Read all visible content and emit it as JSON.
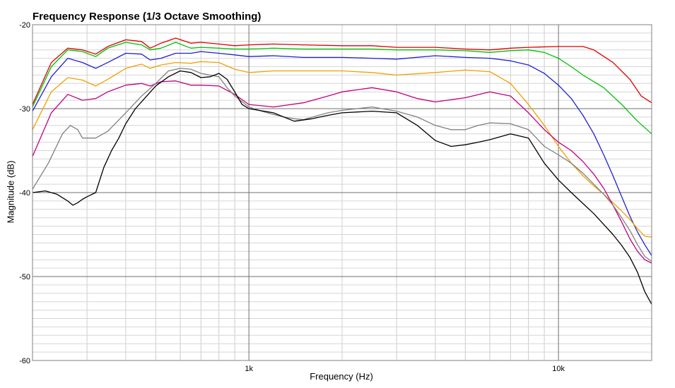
{
  "chart_data": {
    "type": "line",
    "title": "Frequency Response (1/3 Octave Smoothing)",
    "xlabel": "Frequency (Hz)",
    "ylabel": "Magnitude (dB)",
    "x_scale": "log",
    "xlim": [
      200,
      20000
    ],
    "ylim": [
      -60,
      -20
    ],
    "x_ticks": [
      {
        "value": 1000,
        "label": "1k"
      },
      {
        "value": 10000,
        "label": "10k"
      }
    ],
    "y_ticks": [
      {
        "value": -20,
        "label": "-20"
      },
      {
        "value": -30,
        "label": "-30"
      },
      {
        "value": -40,
        "label": "-40"
      },
      {
        "value": -50,
        "label": "-50"
      },
      {
        "value": -60,
        "label": "-60"
      }
    ],
    "grid": true,
    "legend": "none",
    "series": [
      {
        "color": "#e00000",
        "points": [
          [
            200,
            -29.5
          ],
          [
            230,
            -24.5
          ],
          [
            260,
            -22.8
          ],
          [
            290,
            -23
          ],
          [
            320,
            -23.5
          ],
          [
            350,
            -22.6
          ],
          [
            400,
            -21.8
          ],
          [
            450,
            -22
          ],
          [
            480,
            -22.8
          ],
          [
            520,
            -22.2
          ],
          [
            580,
            -21.6
          ],
          [
            650,
            -22.2
          ],
          [
            700,
            -22.1
          ],
          [
            800,
            -22.3
          ],
          [
            900,
            -22.5
          ],
          [
            1000,
            -22.4
          ],
          [
            1200,
            -22.3
          ],
          [
            1500,
            -22.4
          ],
          [
            2000,
            -22.5
          ],
          [
            2500,
            -22.5
          ],
          [
            3000,
            -22.7
          ],
          [
            4000,
            -22.7
          ],
          [
            5000,
            -22.9
          ],
          [
            6000,
            -23
          ],
          [
            7000,
            -22.8
          ],
          [
            8000,
            -22.7
          ],
          [
            10000,
            -22.6
          ],
          [
            12000,
            -22.6
          ],
          [
            13000,
            -23
          ],
          [
            15000,
            -24.5
          ],
          [
            17000,
            -26.5
          ],
          [
            18500,
            -28.5
          ],
          [
            20000,
            -29.3
          ]
        ]
      },
      {
        "color": "#00c000",
        "points": [
          [
            200,
            -29.8
          ],
          [
            230,
            -25
          ],
          [
            260,
            -23
          ],
          [
            290,
            -23.2
          ],
          [
            320,
            -23.8
          ],
          [
            350,
            -22.8
          ],
          [
            400,
            -22.1
          ],
          [
            450,
            -22.4
          ],
          [
            480,
            -23
          ],
          [
            520,
            -22.8
          ],
          [
            580,
            -22.1
          ],
          [
            650,
            -22.8
          ],
          [
            700,
            -22.7
          ],
          [
            800,
            -22.8
          ],
          [
            900,
            -22.9
          ],
          [
            1000,
            -22.9
          ],
          [
            1200,
            -22.8
          ],
          [
            1500,
            -22.9
          ],
          [
            2000,
            -22.9
          ],
          [
            2500,
            -22.9
          ],
          [
            3000,
            -23
          ],
          [
            4000,
            -23
          ],
          [
            5000,
            -23.1
          ],
          [
            6000,
            -23.3
          ],
          [
            7000,
            -23.1
          ],
          [
            8000,
            -23
          ],
          [
            9000,
            -23.3
          ],
          [
            10000,
            -24
          ],
          [
            11000,
            -25
          ],
          [
            12000,
            -26
          ],
          [
            14000,
            -27.5
          ],
          [
            16000,
            -29.5
          ],
          [
            18000,
            -31.5
          ],
          [
            20000,
            -33
          ]
        ]
      },
      {
        "color": "#2020d0",
        "points": [
          [
            200,
            -30.3
          ],
          [
            230,
            -26.2
          ],
          [
            260,
            -24
          ],
          [
            290,
            -24.5
          ],
          [
            320,
            -25.2
          ],
          [
            350,
            -24.5
          ],
          [
            400,
            -23.4
          ],
          [
            450,
            -23.5
          ],
          [
            480,
            -24.2
          ],
          [
            520,
            -24
          ],
          [
            580,
            -23.4
          ],
          [
            650,
            -23.4
          ],
          [
            700,
            -23.2
          ],
          [
            800,
            -23.4
          ],
          [
            900,
            -23.6
          ],
          [
            1000,
            -23.8
          ],
          [
            1200,
            -23.7
          ],
          [
            1500,
            -23.9
          ],
          [
            2000,
            -23.9
          ],
          [
            2500,
            -24
          ],
          [
            3000,
            -24.1
          ],
          [
            4000,
            -23.7
          ],
          [
            5000,
            -23.9
          ],
          [
            6000,
            -24
          ],
          [
            7000,
            -24.3
          ],
          [
            8000,
            -24.8
          ],
          [
            9000,
            -25.8
          ],
          [
            10000,
            -27.2
          ],
          [
            11000,
            -28.8
          ],
          [
            12000,
            -30.8
          ],
          [
            13000,
            -33
          ],
          [
            14000,
            -35.5
          ],
          [
            15000,
            -38
          ],
          [
            16000,
            -40.5
          ],
          [
            17000,
            -42.8
          ],
          [
            18000,
            -44.7
          ],
          [
            19000,
            -46.2
          ],
          [
            20000,
            -47.5
          ]
        ]
      },
      {
        "color": "#f0a000",
        "points": [
          [
            200,
            -32.5
          ],
          [
            230,
            -28
          ],
          [
            260,
            -26.3
          ],
          [
            290,
            -26.6
          ],
          [
            320,
            -27.3
          ],
          [
            350,
            -26.5
          ],
          [
            400,
            -25.2
          ],
          [
            450,
            -24.7
          ],
          [
            480,
            -25.2
          ],
          [
            520,
            -24.8
          ],
          [
            580,
            -24.5
          ],
          [
            650,
            -24.6
          ],
          [
            700,
            -24.4
          ],
          [
            800,
            -24.5
          ],
          [
            900,
            -25.3
          ],
          [
            1000,
            -25.7
          ],
          [
            1200,
            -25.5
          ],
          [
            1500,
            -25.5
          ],
          [
            2000,
            -25.5
          ],
          [
            2500,
            -25.7
          ],
          [
            3000,
            -26
          ],
          [
            4000,
            -25.7
          ],
          [
            5000,
            -25.4
          ],
          [
            6000,
            -25.6
          ],
          [
            7000,
            -27
          ],
          [
            8000,
            -29.5
          ],
          [
            9000,
            -32
          ],
          [
            10000,
            -34.5
          ],
          [
            11000,
            -36.5
          ],
          [
            12000,
            -38
          ],
          [
            13000,
            -39.2
          ],
          [
            14000,
            -40.2
          ],
          [
            15000,
            -41.2
          ],
          [
            16000,
            -42.2
          ],
          [
            17000,
            -43.2
          ],
          [
            18000,
            -44.3
          ],
          [
            19000,
            -45.2
          ],
          [
            20000,
            -45.3
          ]
        ]
      },
      {
        "color": "#c00080",
        "points": [
          [
            200,
            -35.7
          ],
          [
            230,
            -30.5
          ],
          [
            260,
            -28.3
          ],
          [
            290,
            -29
          ],
          [
            320,
            -28.8
          ],
          [
            350,
            -28
          ],
          [
            400,
            -27.2
          ],
          [
            450,
            -27
          ],
          [
            480,
            -27.3
          ],
          [
            520,
            -26.8
          ],
          [
            580,
            -26.7
          ],
          [
            650,
            -27.2
          ],
          [
            700,
            -27.2
          ],
          [
            800,
            -27.3
          ],
          [
            900,
            -28.3
          ],
          [
            1000,
            -29.5
          ],
          [
            1200,
            -29.8
          ],
          [
            1500,
            -29.3
          ],
          [
            1800,
            -28.5
          ],
          [
            2000,
            -28
          ],
          [
            2500,
            -27.5
          ],
          [
            3000,
            -28
          ],
          [
            3500,
            -28.8
          ],
          [
            4000,
            -29.2
          ],
          [
            5000,
            -28.7
          ],
          [
            6000,
            -28
          ],
          [
            7000,
            -28.5
          ],
          [
            8000,
            -30.5
          ],
          [
            9000,
            -32.5
          ],
          [
            10000,
            -34
          ],
          [
            11000,
            -35
          ],
          [
            12000,
            -36.3
          ],
          [
            13000,
            -37.8
          ],
          [
            14000,
            -39.5
          ],
          [
            15000,
            -41.5
          ],
          [
            16000,
            -43.5
          ],
          [
            17000,
            -45.5
          ],
          [
            18000,
            -47
          ],
          [
            19000,
            -48
          ],
          [
            20000,
            -48.4
          ]
        ]
      },
      {
        "color": "#808080",
        "points": [
          [
            200,
            -39.6
          ],
          [
            225,
            -36.5
          ],
          [
            250,
            -33
          ],
          [
            265,
            -32
          ],
          [
            280,
            -32.5
          ],
          [
            290,
            -33.5
          ],
          [
            320,
            -33.5
          ],
          [
            350,
            -32.7
          ],
          [
            400,
            -30.5
          ],
          [
            450,
            -28.5
          ],
          [
            500,
            -27
          ],
          [
            550,
            -25.5
          ],
          [
            600,
            -25.2
          ],
          [
            650,
            -25.3
          ],
          [
            700,
            -25.8
          ],
          [
            800,
            -26.2
          ],
          [
            850,
            -27.5
          ],
          [
            900,
            -28.5
          ],
          [
            1000,
            -29.8
          ],
          [
            1100,
            -30.3
          ],
          [
            1200,
            -30.7
          ],
          [
            1300,
            -31
          ],
          [
            1400,
            -31.2
          ],
          [
            1500,
            -31.3
          ],
          [
            1800,
            -30.5
          ],
          [
            2000,
            -30.2
          ],
          [
            2500,
            -29.8
          ],
          [
            3000,
            -30.3
          ],
          [
            3500,
            -31
          ],
          [
            4000,
            -32
          ],
          [
            4500,
            -32.5
          ],
          [
            5000,
            -32.5
          ],
          [
            5500,
            -32
          ],
          [
            6000,
            -31.7
          ],
          [
            7000,
            -31.8
          ],
          [
            8000,
            -32.5
          ],
          [
            9000,
            -34.5
          ],
          [
            10000,
            -35.5
          ],
          [
            11000,
            -36.5
          ],
          [
            12000,
            -37.7
          ],
          [
            13000,
            -39
          ],
          [
            14000,
            -40.2
          ],
          [
            15000,
            -41.5
          ],
          [
            16000,
            -43
          ],
          [
            17000,
            -44.5
          ],
          [
            18000,
            -46.2
          ],
          [
            19000,
            -47.6
          ],
          [
            20000,
            -48.2
          ]
        ]
      },
      {
        "color": "#000000",
        "points": [
          [
            200,
            -40
          ],
          [
            220,
            -39.8
          ],
          [
            240,
            -40.2
          ],
          [
            260,
            -41
          ],
          [
            270,
            -41.5
          ],
          [
            280,
            -41.2
          ],
          [
            290,
            -40.8
          ],
          [
            300,
            -40.5
          ],
          [
            320,
            -40
          ],
          [
            340,
            -37
          ],
          [
            360,
            -35
          ],
          [
            380,
            -33.5
          ],
          [
            400,
            -31.8
          ],
          [
            430,
            -30
          ],
          [
            460,
            -28.8
          ],
          [
            500,
            -27.3
          ],
          [
            550,
            -26.2
          ],
          [
            600,
            -25.5
          ],
          [
            650,
            -25.7
          ],
          [
            700,
            -26.3
          ],
          [
            750,
            -26.2
          ],
          [
            800,
            -25.8
          ],
          [
            850,
            -26.5
          ],
          [
            900,
            -28
          ],
          [
            950,
            -29.5
          ],
          [
            1000,
            -30
          ],
          [
            1200,
            -30.5
          ],
          [
            1400,
            -31.5
          ],
          [
            1600,
            -31.2
          ],
          [
            1800,
            -30.8
          ],
          [
            2000,
            -30.5
          ],
          [
            2500,
            -30.3
          ],
          [
            3000,
            -30.5
          ],
          [
            3500,
            -32
          ],
          [
            4000,
            -33.8
          ],
          [
            4500,
            -34.5
          ],
          [
            5000,
            -34.3
          ],
          [
            5500,
            -34
          ],
          [
            6000,
            -33.7
          ],
          [
            7000,
            -33
          ],
          [
            8000,
            -33.5
          ],
          [
            9000,
            -36.5
          ],
          [
            10000,
            -38.5
          ],
          [
            11000,
            -40
          ],
          [
            12000,
            -41.3
          ],
          [
            13000,
            -42.5
          ],
          [
            14000,
            -43.8
          ],
          [
            15000,
            -45
          ],
          [
            16000,
            -46.3
          ],
          [
            17000,
            -47.7
          ],
          [
            18000,
            -49.5
          ],
          [
            19000,
            -51.8
          ],
          [
            20000,
            -53.3
          ]
        ]
      }
    ]
  }
}
